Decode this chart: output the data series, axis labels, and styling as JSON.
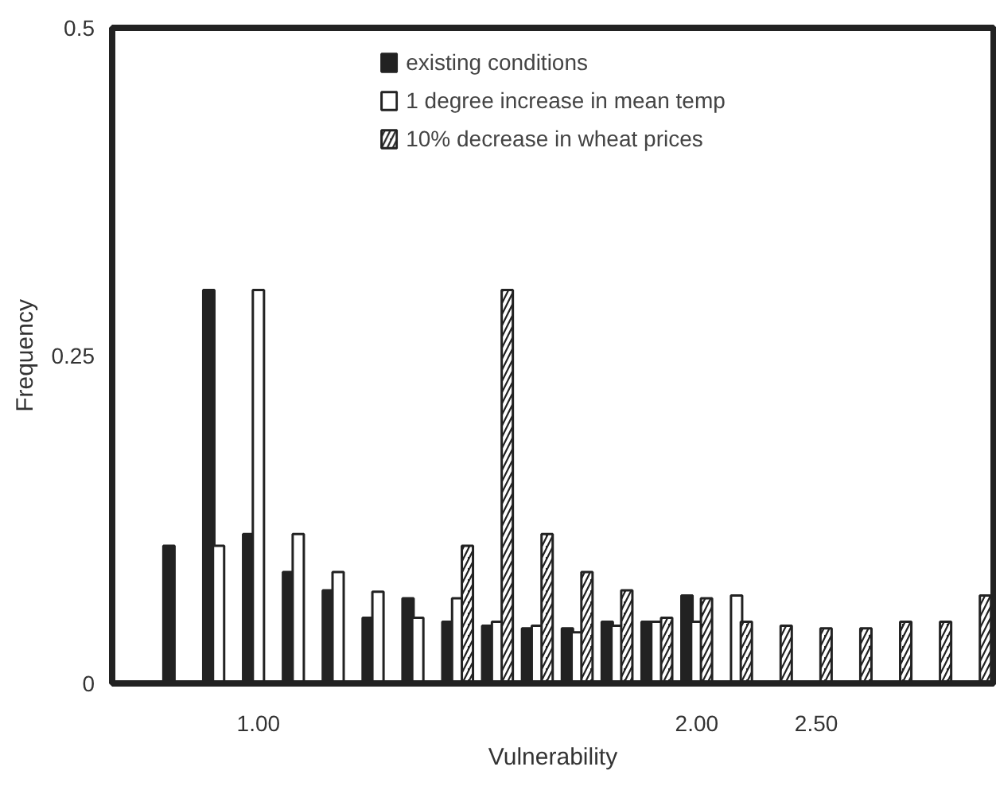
{
  "chart_data": {
    "type": "bar",
    "xlabel": "Vulnerability",
    "ylabel": "Frequency",
    "categories": [
      null,
      null,
      "1.00",
      null,
      null,
      null,
      null,
      null,
      null,
      null,
      null,
      null,
      null,
      "2.00",
      null,
      null,
      "2.50",
      null,
      null,
      null,
      null
    ],
    "series": [
      {
        "name": "existing conditions",
        "color": "#222222",
        "values": [
          0.105,
          0.3,
          0.114,
          0.085,
          0.071,
          0.05,
          0.065,
          0.047,
          0.044,
          0.042,
          0.042,
          0.047,
          0.047,
          0.067,
          null,
          null,
          null,
          null,
          null,
          null,
          null
        ]
      },
      {
        "name": "1 degree increase in mean temp",
        "color": "#ffffff",
        "values": [
          null,
          0.105,
          0.3,
          0.114,
          0.085,
          0.07,
          0.05,
          0.065,
          0.047,
          0.044,
          0.039,
          0.044,
          0.047,
          0.047,
          0.067,
          null,
          null,
          null,
          null,
          null,
          null
        ]
      },
      {
        "name": "10% decrease in wheat prices",
        "color": "#222222",
        "values": [
          null,
          null,
          null,
          null,
          null,
          null,
          null,
          0.105,
          0.3,
          0.114,
          0.085,
          0.071,
          0.05,
          0.065,
          0.047,
          0.044,
          0.042,
          0.042,
          0.047,
          0.047,
          0.067
        ]
      }
    ],
    "ylim": [
      0,
      0.5
    ],
    "yticks": [
      0,
      0.25,
      0.5
    ],
    "grid": false,
    "legend": "top"
  }
}
